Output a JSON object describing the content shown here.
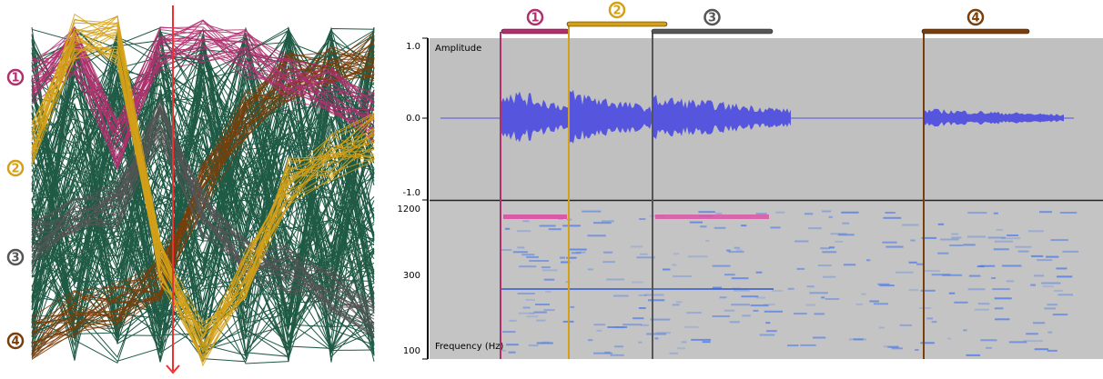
{
  "bundle_labels": [
    "1",
    "2",
    "3",
    "4"
  ],
  "segment_labels": [
    "1",
    "2",
    "3",
    "4"
  ],
  "waveform": {
    "y_label": "Amplitude",
    "ticks": [
      "1.0",
      "0.0",
      "-1.0"
    ]
  },
  "spectrogram": {
    "y_label": "Frequency (Hz)",
    "ticks": [
      "1200",
      "300",
      "100"
    ]
  }
}
